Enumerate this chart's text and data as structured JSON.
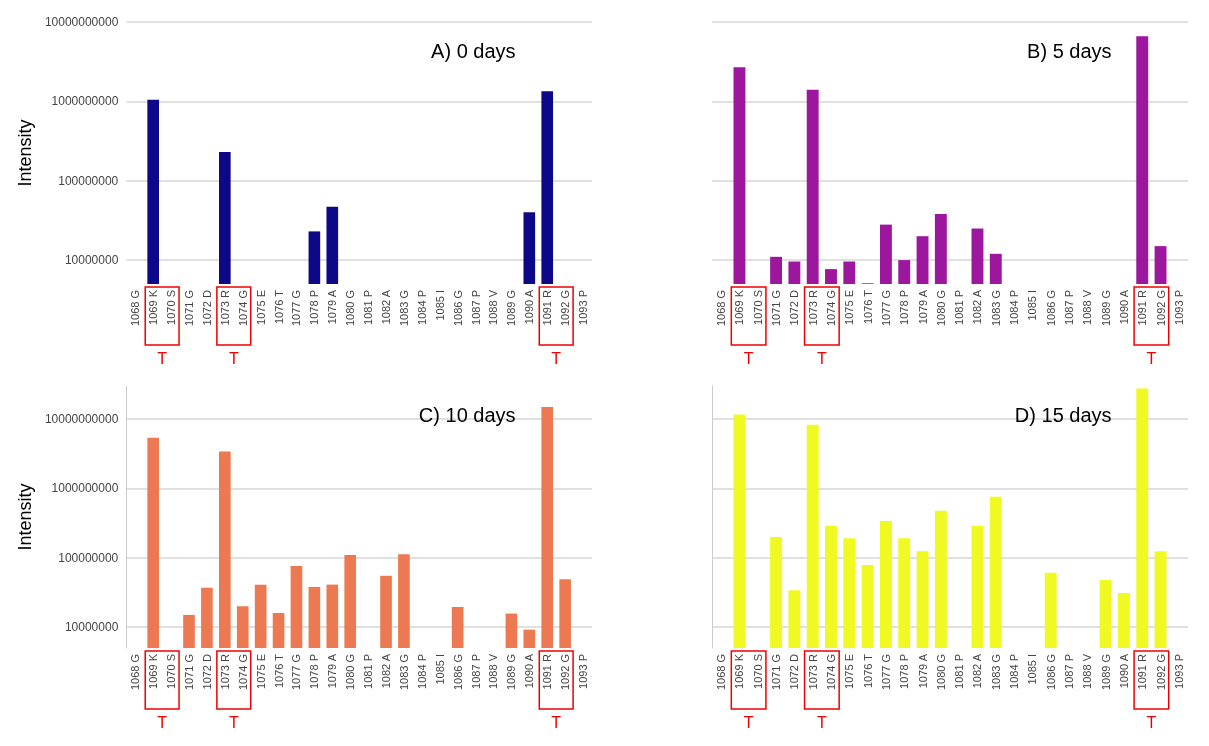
{
  "chart_data": [
    {
      "type": "bar",
      "title": "A) 0 days",
      "ylabel": "Intensity",
      "log": true,
      "grid": "y",
      "color": "#0d0887",
      "categories": [
        "1068 G",
        "1069 K",
        "1070 S",
        "1071 G",
        "1072 D",
        "1073 R",
        "1074 G",
        "1075 E",
        "1076 T",
        "1077 G",
        "1078 P",
        "1079 A",
        "1080 G",
        "1081 P",
        "1082 A",
        "1083 G",
        "1084 P",
        "1085 I",
        "1086 G",
        "1087 P",
        "1088 V",
        "1089 G",
        "1090 A",
        "1091 R",
        "1092 G",
        "1093 P"
      ],
      "values": [
        null,
        1050000000,
        null,
        null,
        null,
        230000000,
        null,
        null,
        null,
        null,
        23000000,
        47000000,
        null,
        null,
        null,
        null,
        null,
        null,
        null,
        null,
        null,
        null,
        40000000,
        1340000000,
        null,
        null
      ],
      "ylim": [
        5000000,
        10000000000
      ],
      "yticks": [
        10000000,
        100000000,
        1000000000,
        10000000000
      ],
      "annotations": [
        "T",
        "T",
        "T"
      ]
    },
    {
      "type": "bar",
      "title": "B) 5 days",
      "log": true,
      "grid": "y",
      "color": "#9c179e",
      "tick_labels": "x",
      "categories": [
        "1068 G",
        "1069 K",
        "1070 S",
        "1071 G",
        "1072 D",
        "1073 R",
        "1074 G",
        "1075 E",
        "1076 T",
        "1077 G",
        "1078 P",
        "1079 A",
        "1080 G",
        "1081 P",
        "1082 A",
        "1083 G",
        "1084 P",
        "1085 I",
        "1086 G",
        "1087 P",
        "1088 V",
        "1089 G",
        "1090 A",
        "1091 R",
        "1092 G",
        "1093 P"
      ],
      "values": [
        null,
        2700000000,
        null,
        11000000,
        9600000,
        1400000000,
        7700000,
        9600000,
        5100000,
        28000000,
        10000000,
        20000000,
        38000000,
        null,
        25000000,
        12000000,
        null,
        null,
        null,
        null,
        null,
        null,
        null,
        6600000000,
        15000000,
        null
      ],
      "ylim": [
        5000000,
        10000000000
      ],
      "yticks": [
        10000000,
        100000000,
        1000000000,
        10000000000
      ],
      "annotations": [
        "T",
        "T",
        "T"
      ]
    },
    {
      "type": "bar",
      "title": "C) 10 days",
      "ylabel": "Intensity",
      "log": true,
      "grid": "y",
      "color": "#ed7953",
      "categories": [
        "1068 G",
        "1069 K",
        "1070 S",
        "1071 G",
        "1072 D",
        "1073 R",
        "1074 G",
        "1075 E",
        "1076 T",
        "1077 G",
        "1078 P",
        "1079 A",
        "1080 G",
        "1081 P",
        "1082 A",
        "1083 G",
        "1084 P",
        "1085 I",
        "1086 G",
        "1087 P",
        "1088 V",
        "1089 G",
        "1090 A",
        "1091 R",
        "1092 G",
        "1093 P"
      ],
      "values": [
        null,
        5400000000,
        null,
        15000000,
        37000000,
        3400000000,
        20000000,
        41000000,
        16000000,
        76000000,
        38000000,
        41000000,
        110000000,
        null,
        55000000,
        112000000,
        null,
        null,
        19500000,
        null,
        null,
        15700000,
        9200000,
        15000000000,
        49000000,
        null
      ],
      "ylim": [
        5000000,
        30000000000
      ],
      "yticks": [
        10000000,
        100000000,
        1000000000,
        10000000000
      ],
      "annotations": [
        "T",
        "T",
        "T"
      ]
    },
    {
      "type": "bar",
      "title": "D) 15 days",
      "log": true,
      "grid": "y",
      "color": "#f0f921",
      "tick_labels": "x",
      "categories": [
        "1068 G",
        "1069 K",
        "1070 S",
        "1071 G",
        "1072 D",
        "1073 R",
        "1074 G",
        "1075 E",
        "1076 T",
        "1077 G",
        "1078 P",
        "1079 A",
        "1080 G",
        "1081 P",
        "1082 A",
        "1083 G",
        "1084 P",
        "1085 I",
        "1086 G",
        "1087 P",
        "1088 V",
        "1089 G",
        "1090 A",
        "1091 R",
        "1092 G",
        "1093 P"
      ],
      "values": [
        null,
        11600000000,
        null,
        200000000,
        34000000,
        8300000000,
        290000000,
        192000000,
        79000000,
        340000000,
        192000000,
        124000000,
        475000000,
        null,
        290000000,
        760000000,
        null,
        null,
        61000000,
        null,
        null,
        48000000,
        31000000,
        27500000000,
        124000000,
        null
      ],
      "ylim": [
        5000000,
        30000000000
      ],
      "yticks": [
        10000000,
        100000000,
        1000000000,
        10000000000
      ],
      "annotations": [
        "T",
        "T",
        "T"
      ]
    }
  ]
}
